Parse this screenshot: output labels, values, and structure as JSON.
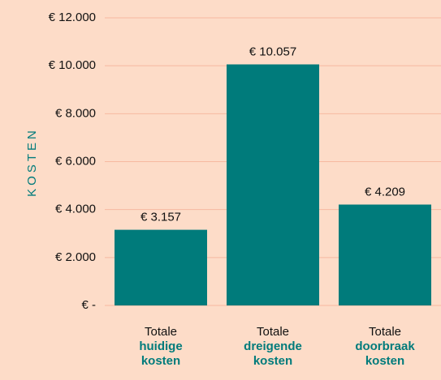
{
  "chart_data": {
    "type": "bar",
    "y_label": "KOSTEN",
    "categories": [
      [
        "Totale",
        "huidige",
        "kosten"
      ],
      [
        "Totale",
        "dreigende",
        "kosten"
      ],
      [
        "Totale",
        "doorbraak",
        "kosten"
      ]
    ],
    "values": [
      3157,
      10057,
      4209
    ],
    "value_labels": [
      "€ 3.157",
      "€ 10.057",
      "€ 4.209"
    ],
    "color": "#007b7b",
    "ylim": [
      0,
      12000
    ],
    "yticks": [
      {
        "value": 0,
        "label": "€ -"
      },
      {
        "value": 2000,
        "label": "€ 2.000"
      },
      {
        "value": 4000,
        "label": "€ 4.000"
      },
      {
        "value": 6000,
        "label": "€ 6.000"
      },
      {
        "value": 8000,
        "label": "€ 8.000"
      },
      {
        "value": 10000,
        "label": "€ 10.000"
      },
      {
        "value": 12000,
        "label": "€ 12.000"
      }
    ],
    "grid": true
  }
}
